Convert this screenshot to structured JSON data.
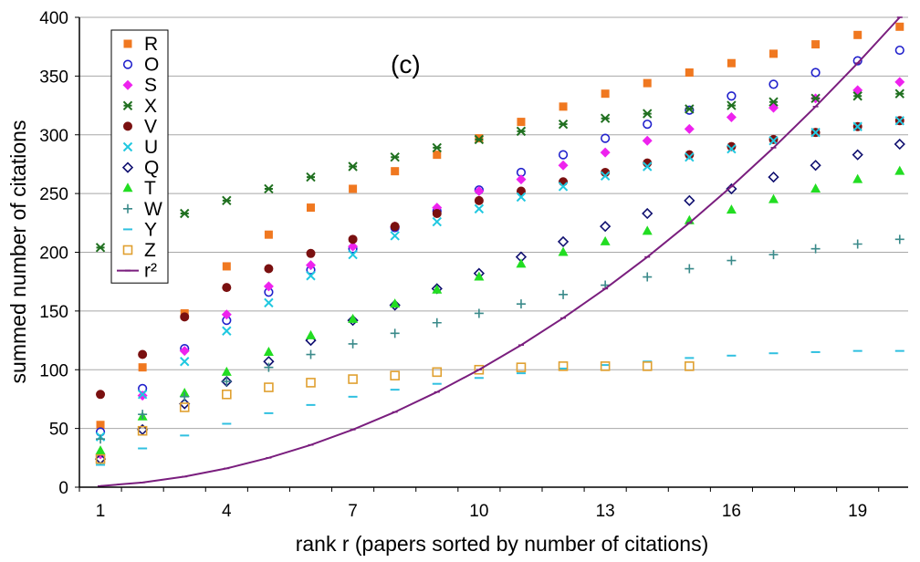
{
  "chart_data": {
    "type": "scatter",
    "title": "",
    "panel_label": "(c)",
    "xlabel": "rank r (papers sorted by number of citations)",
    "ylabel": "summed number of citations",
    "xlim": [
      0.5,
      20.2
    ],
    "ylim": [
      0,
      400
    ],
    "xticks": [
      1,
      4,
      7,
      10,
      13,
      16,
      19
    ],
    "yticks": [
      0,
      50,
      100,
      150,
      200,
      250,
      300,
      350,
      400
    ],
    "grid": "horizontal",
    "legend_position": "top-left",
    "x": [
      1,
      2,
      3,
      4,
      5,
      6,
      7,
      8,
      9,
      10,
      11,
      12,
      13,
      14,
      15,
      16,
      17,
      18,
      19,
      20
    ],
    "series": [
      {
        "name": "R",
        "marker": "square-filled",
        "color": "#F07820",
        "values": [
          53,
          102,
          148,
          188,
          215,
          238,
          254,
          269,
          283,
          297,
          311,
          324,
          335,
          344,
          353,
          361,
          369,
          377,
          385,
          392
        ]
      },
      {
        "name": "O",
        "marker": "circle-open",
        "color": "#2020CC",
        "values": [
          47,
          84,
          118,
          142,
          166,
          185,
          203,
          221,
          235,
          253,
          268,
          283,
          297,
          309,
          321,
          333,
          343,
          353,
          363,
          372
        ]
      },
      {
        "name": "S",
        "marker": "diamond-filled",
        "color": "#EE22EE",
        "values": [
          28,
          78,
          116,
          147,
          171,
          189,
          205,
          222,
          238,
          252,
          262,
          274,
          285,
          295,
          305,
          315,
          323,
          331,
          338,
          345
        ]
      },
      {
        "name": "X",
        "marker": "x-star",
        "color": "#207020",
        "values": [
          204,
          null,
          233,
          244,
          254,
          264,
          273,
          281,
          289,
          296,
          303,
          309,
          314,
          318,
          322,
          325,
          328,
          331,
          333,
          335
        ]
      },
      {
        "name": "V",
        "marker": "circle-filled",
        "color": "#7A1010",
        "values": [
          79,
          113,
          145,
          170,
          186,
          199,
          211,
          222,
          233,
          244,
          252,
          260,
          268,
          276,
          283,
          290,
          296,
          302,
          307,
          312
        ]
      },
      {
        "name": "U",
        "marker": "x-cross",
        "color": "#20C8E0",
        "values": [
          43,
          79,
          107,
          133,
          157,
          180,
          198,
          214,
          226,
          237,
          247,
          256,
          265,
          273,
          281,
          288,
          295,
          302,
          307,
          312
        ]
      },
      {
        "name": "Q",
        "marker": "diamond-open",
        "color": "#101070",
        "values": [
          24,
          49,
          71,
          90,
          107,
          125,
          142,
          155,
          169,
          182,
          196,
          209,
          222,
          233,
          244,
          254,
          264,
          274,
          283,
          292
        ]
      },
      {
        "name": "T",
        "marker": "triangle-filled",
        "color": "#22DD22",
        "values": [
          31,
          60,
          80,
          98,
          115,
          129,
          143,
          156,
          168,
          179,
          190,
          200,
          209,
          218,
          227,
          236,
          245,
          254,
          262,
          269
        ]
      },
      {
        "name": "W",
        "marker": "plus",
        "color": "#3A8A8A",
        "values": [
          41,
          62,
          77,
          90,
          102,
          113,
          122,
          131,
          140,
          148,
          156,
          164,
          172,
          179,
          186,
          193,
          198,
          203,
          207,
          211
        ]
      },
      {
        "name": "Y",
        "marker": "dash",
        "color": "#30C0E0",
        "values": [
          19,
          33,
          44,
          54,
          63,
          70,
          77,
          83,
          88,
          93,
          97,
          101,
          104,
          107,
          110,
          112,
          114,
          115,
          116,
          116
        ]
      },
      {
        "name": "Z",
        "marker": "square-open",
        "color": "#E0A030",
        "values": [
          24,
          48,
          68,
          79,
          85,
          89,
          92,
          95,
          98,
          100,
          102,
          103,
          103,
          103,
          103,
          null,
          null,
          null,
          null,
          null
        ]
      },
      {
        "name": "r²",
        "marker": "line",
        "color": "#7A1E7E",
        "values": [
          1,
          4,
          9,
          16,
          25,
          36,
          49,
          64,
          81,
          100,
          121,
          144,
          169,
          196,
          225,
          256,
          289,
          324,
          361,
          400
        ]
      }
    ]
  }
}
